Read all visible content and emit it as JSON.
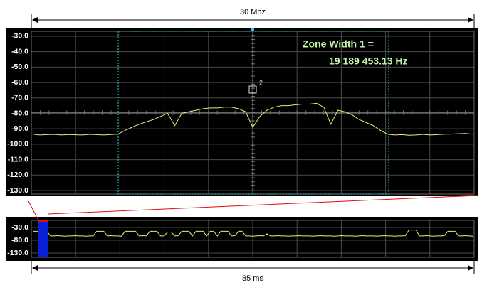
{
  "chart_data": [
    {
      "type": "line",
      "dimension_label": "30 Mhz",
      "zone_label": [
        "Zone Width 1 =",
        "19 189 453.13 Hz"
      ],
      "marker_label": "2",
      "color": "#ecec78",
      "grid": true,
      "ylim": [
        -132.3,
        -26.8
      ],
      "yticks": [
        {
          "value": -30,
          "label": "-30.0"
        },
        {
          "value": -40,
          "label": "-40.0"
        },
        {
          "value": -50,
          "label": "-50.0"
        },
        {
          "value": -60,
          "label": "-60.0"
        },
        {
          "value": -70,
          "label": "-70.0"
        },
        {
          "value": -80,
          "label": "-80.0"
        },
        {
          "value": -90,
          "label": "-90.0"
        },
        {
          "value": -100,
          "label": "-100.0"
        },
        {
          "value": -110,
          "label": "-110.0"
        },
        {
          "value": -120,
          "label": "-120.0"
        },
        {
          "value": -130,
          "label": "-130.0"
        }
      ],
      "values": [
        -93.5,
        -94,
        -93.8,
        -93.6,
        -94,
        -93.7,
        -93.9,
        -94,
        -93.6,
        -93.8,
        -94,
        -93.7,
        -93.5,
        -91,
        -89,
        -87,
        -85.5,
        -84,
        -82,
        -80,
        -88,
        -80,
        -79,
        -78,
        -77,
        -76.5,
        -76.5,
        -76,
        -76,
        -77,
        -79,
        -89,
        -82,
        -78,
        -76,
        -75,
        -75,
        -74.5,
        -74,
        -74,
        -73.5,
        -76,
        -87,
        -78,
        -79,
        -81,
        -84,
        -86,
        -88,
        -91,
        -93.5,
        -94,
        -93.8,
        -94.2,
        -94,
        -93.6,
        -94,
        -93.8,
        -93.5,
        -93.4,
        -93.2,
        -93,
        -93.5
      ]
    },
    {
      "type": "line",
      "dimension_label": "85 ms",
      "color": "#ecec78",
      "grid": true,
      "ylim": [
        -146.7,
        -2.2
      ],
      "yticks": [
        {
          "value": -30,
          "label": "-30.0"
        },
        {
          "value": -80,
          "label": "-80.0"
        },
        {
          "value": -130,
          "label": "-130.0"
        }
      ],
      "values": [
        -45,
        -45,
        -45,
        -45,
        -45,
        -63,
        -63,
        -62,
        -63,
        -64,
        -63,
        -63,
        -62,
        -63,
        -63,
        -64,
        -63,
        -63,
        -45,
        -45,
        -45,
        -63,
        -62,
        -63,
        -63,
        -64,
        -45,
        -45,
        -45,
        -45,
        -63,
        -62,
        -63,
        -45,
        -45,
        -45,
        -63,
        -63,
        -48,
        -48,
        -63,
        -62,
        -45,
        -45,
        -45,
        -63,
        -45,
        -45,
        -45,
        -63,
        -45,
        -45,
        -63,
        -45,
        -45,
        -45,
        -63,
        -62,
        -45,
        -45,
        -63,
        -63,
        -64,
        -63,
        -62,
        -63,
        -55,
        -63,
        -63,
        -62,
        -63,
        -63,
        -64,
        -63,
        -63,
        -62,
        -63,
        -63,
        -63,
        -64,
        -63,
        -62,
        -63,
        -63,
        -63,
        -64,
        -63,
        -62,
        -63,
        -63,
        -63,
        -64,
        -63,
        -62,
        -63,
        -63,
        -63,
        -64,
        -63,
        -62,
        -63,
        -63,
        -64,
        -63,
        -63,
        -62,
        -40,
        -40,
        -40,
        -63,
        -63,
        -62,
        -63,
        -64,
        -63,
        -63,
        -62,
        -45,
        -45,
        -45,
        -63,
        -63,
        -62,
        -63,
        -64
      ]
    }
  ]
}
